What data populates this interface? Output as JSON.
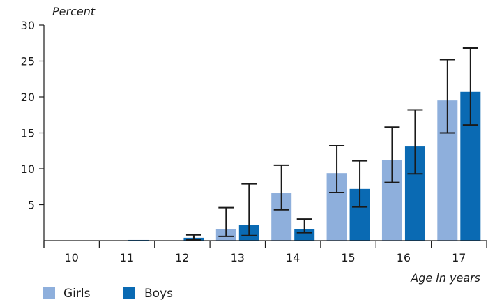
{
  "chart_data": {
    "type": "bar",
    "ylabel": "Percent",
    "xlabel": "Age in years",
    "ylim": [
      0,
      30
    ],
    "yticks": [
      5,
      10,
      15,
      20,
      25,
      30
    ],
    "categories": [
      "10",
      "11",
      "12",
      "13",
      "14",
      "15",
      "16",
      "17"
    ],
    "series": [
      {
        "name": "Girls",
        "color": "#8eafdc",
        "values": [
          0,
          0,
          0,
          1.6,
          6.6,
          9.4,
          11.2,
          19.5
        ],
        "error_low": [
          null,
          null,
          null,
          0.6,
          4.3,
          6.7,
          8.1,
          15.0
        ],
        "error_high": [
          null,
          null,
          null,
          4.6,
          10.5,
          13.2,
          15.8,
          25.2
        ]
      },
      {
        "name": "Boys",
        "color": "#0a6ab3",
        "values": [
          0,
          0.1,
          0.4,
          2.2,
          1.6,
          7.2,
          13.1,
          20.7
        ],
        "error_low": [
          null,
          null,
          0.1,
          0.7,
          1.1,
          4.7,
          9.3,
          16.1
        ],
        "error_high": [
          null,
          null,
          0.8,
          7.9,
          3.0,
          11.1,
          18.2,
          26.8
        ]
      }
    ],
    "legend_position": "bottom-left"
  }
}
